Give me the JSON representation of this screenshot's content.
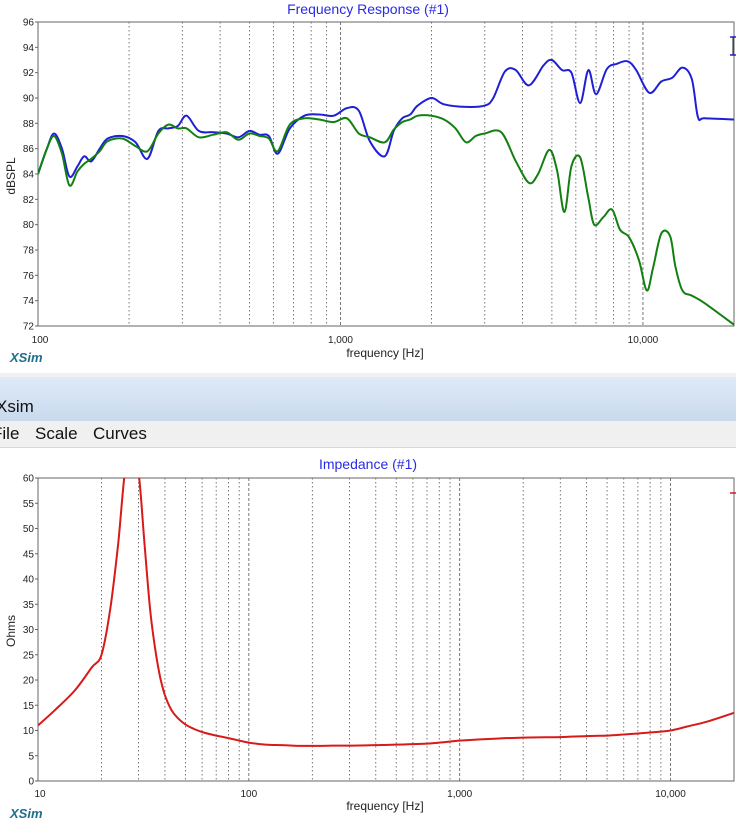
{
  "window": {
    "title": "Xsim"
  },
  "menu": [
    {
      "label": "File"
    },
    {
      "label": "Scale"
    },
    {
      "label": "Curves"
    }
  ],
  "brand": "XSim",
  "colors": {
    "title": "#2a2ae6",
    "blue": "#1f1fd6",
    "green": "#118011",
    "red": "#d81a1a"
  },
  "chart_data": [
    {
      "type": "line",
      "title": "Frequency Response (#1)",
      "xlabel": "frequency [Hz]",
      "ylabel": "dBSPL",
      "xscale": "log",
      "xlim": [
        100,
        20000
      ],
      "ylim": [
        72,
        96
      ],
      "xticks": [
        100,
        1000,
        10000
      ],
      "xtick_labels": [
        "100",
        "1,000",
        "10,000"
      ],
      "yticks": [
        72,
        74,
        76,
        78,
        80,
        82,
        84,
        86,
        88,
        90,
        92,
        94,
        96
      ],
      "ytick_labels": [
        "72",
        "74",
        "76",
        "78",
        "80",
        "82",
        "84",
        "86",
        "88",
        "90",
        "92",
        "94",
        "96"
      ],
      "grid": "vertical dashed",
      "series": [
        {
          "color": "blue",
          "x": [
            100,
            107,
            113,
            120,
            127,
            135,
            142,
            150,
            160,
            170,
            190,
            210,
            230,
            250,
            270,
            290,
            310,
            340,
            380,
            420,
            460,
            500,
            540,
            580,
            620,
            680,
            760,
            850,
            950,
            1050,
            1150,
            1250,
            1400,
            1500,
            1600,
            1700,
            1800,
            2000,
            2200,
            2600,
            3000,
            3200,
            3500,
            3800,
            4200,
            4700,
            5000,
            5400,
            5800,
            6200,
            6600,
            7000,
            7600,
            8200,
            8900,
            9500,
            10500,
            11500,
            12500,
            13500,
            14500,
            15200,
            16000,
            20000
          ],
          "y": [
            84.0,
            86.0,
            87.2,
            86.0,
            83.8,
            84.6,
            85.4,
            85.0,
            86.0,
            86.8,
            87.0,
            86.5,
            85.2,
            87.4,
            87.6,
            87.8,
            88.6,
            87.4,
            87.3,
            87.2,
            86.9,
            87.4,
            87.1,
            87.0,
            85.6,
            87.6,
            88.6,
            88.7,
            88.6,
            89.2,
            89.0,
            86.6,
            85.4,
            87.4,
            88.4,
            88.7,
            89.4,
            90.0,
            89.5,
            89.3,
            89.4,
            90.0,
            92.1,
            92.2,
            91.0,
            92.6,
            93.0,
            92.2,
            92.0,
            89.6,
            92.2,
            90.3,
            92.3,
            92.7,
            92.9,
            92.2,
            90.4,
            91.3,
            91.6,
            92.4,
            91.5,
            88.5,
            88.4,
            88.3
          ]
        },
        {
          "color": "green",
          "x": [
            100,
            107,
            113,
            120,
            127,
            135,
            142,
            150,
            160,
            170,
            190,
            210,
            230,
            250,
            270,
            290,
            310,
            340,
            380,
            420,
            460,
            500,
            540,
            580,
            620,
            680,
            760,
            850,
            950,
            1050,
            1150,
            1250,
            1400,
            1500,
            1600,
            1700,
            1800,
            2000,
            2200,
            2400,
            2600,
            2800,
            3000,
            3400,
            3800,
            4200,
            4500,
            4900,
            5200,
            5500,
            5800,
            6200,
            6600,
            6900,
            7400,
            7900,
            8400,
            9000,
            9700,
            10300,
            10800,
            11500,
            12300,
            12800,
            13500,
            14500,
            16000,
            20000
          ],
          "y": [
            84.0,
            86.0,
            87.0,
            85.6,
            83.1,
            84.2,
            84.8,
            85.2,
            85.8,
            86.6,
            86.8,
            86.2,
            85.8,
            87.2,
            87.9,
            87.6,
            87.6,
            86.9,
            87.1,
            87.3,
            86.7,
            87.2,
            87.0,
            86.8,
            85.8,
            87.9,
            88.4,
            88.3,
            88.1,
            88.4,
            87.2,
            86.9,
            86.5,
            87.5,
            88.1,
            88.3,
            88.6,
            88.6,
            88.3,
            87.6,
            86.5,
            87.0,
            87.2,
            87.3,
            85.0,
            83.3,
            84.0,
            85.9,
            84.3,
            81.0,
            84.6,
            85.3,
            82.1,
            80.0,
            80.6,
            81.2,
            79.6,
            79.0,
            77.2,
            74.8,
            76.6,
            79.3,
            79.1,
            76.7,
            74.8,
            74.4,
            73.8,
            72.1
          ]
        }
      ]
    },
    {
      "type": "line",
      "title": "Impedance (#1)",
      "xlabel": "frequency [Hz]",
      "ylabel": "Ohms",
      "xscale": "log",
      "xlim": [
        10,
        20000
      ],
      "ylim": [
        0,
        60
      ],
      "xticks": [
        10,
        100,
        1000,
        10000
      ],
      "xtick_labels": [
        "10",
        "100",
        "1,000",
        "10,000"
      ],
      "yticks": [
        0,
        5,
        10,
        15,
        20,
        25,
        30,
        35,
        40,
        45,
        50,
        55,
        60
      ],
      "ytick_labels": [
        "0",
        "5",
        "10",
        "15",
        "20",
        "25",
        "30",
        "35",
        "40",
        "45",
        "50",
        "55",
        "60"
      ],
      "grid": "vertical dashed",
      "series": [
        {
          "color": "red",
          "x": [
            10,
            12,
            15,
            18,
            20,
            22,
            24,
            26,
            28,
            30,
            32,
            34,
            36,
            38,
            40,
            43,
            46,
            50,
            55,
            60,
            65,
            70,
            80,
            90,
            100,
            120,
            140,
            160,
            180,
            200,
            250,
            300,
            400,
            500,
            600,
            700,
            800,
            900,
            1000,
            1500,
            2000,
            3000,
            4000,
            5000,
            6000,
            8000,
            10000,
            12000,
            15000,
            20000
          ],
          "y": [
            11.0,
            14.0,
            18.0,
            22.5,
            25.0,
            34.0,
            47.0,
            62.0,
            64.0,
            61.0,
            47.0,
            34.0,
            26.0,
            20.5,
            17.0,
            14.0,
            12.5,
            11.2,
            10.3,
            9.7,
            9.3,
            9.0,
            8.5,
            8.0,
            7.6,
            7.2,
            7.1,
            7.0,
            6.95,
            6.95,
            7.0,
            7.0,
            7.1,
            7.2,
            7.3,
            7.4,
            7.6,
            7.8,
            8.0,
            8.4,
            8.6,
            8.7,
            8.9,
            9.0,
            9.2,
            9.6,
            10.0,
            10.8,
            11.8,
            13.5
          ]
        }
      ]
    }
  ]
}
